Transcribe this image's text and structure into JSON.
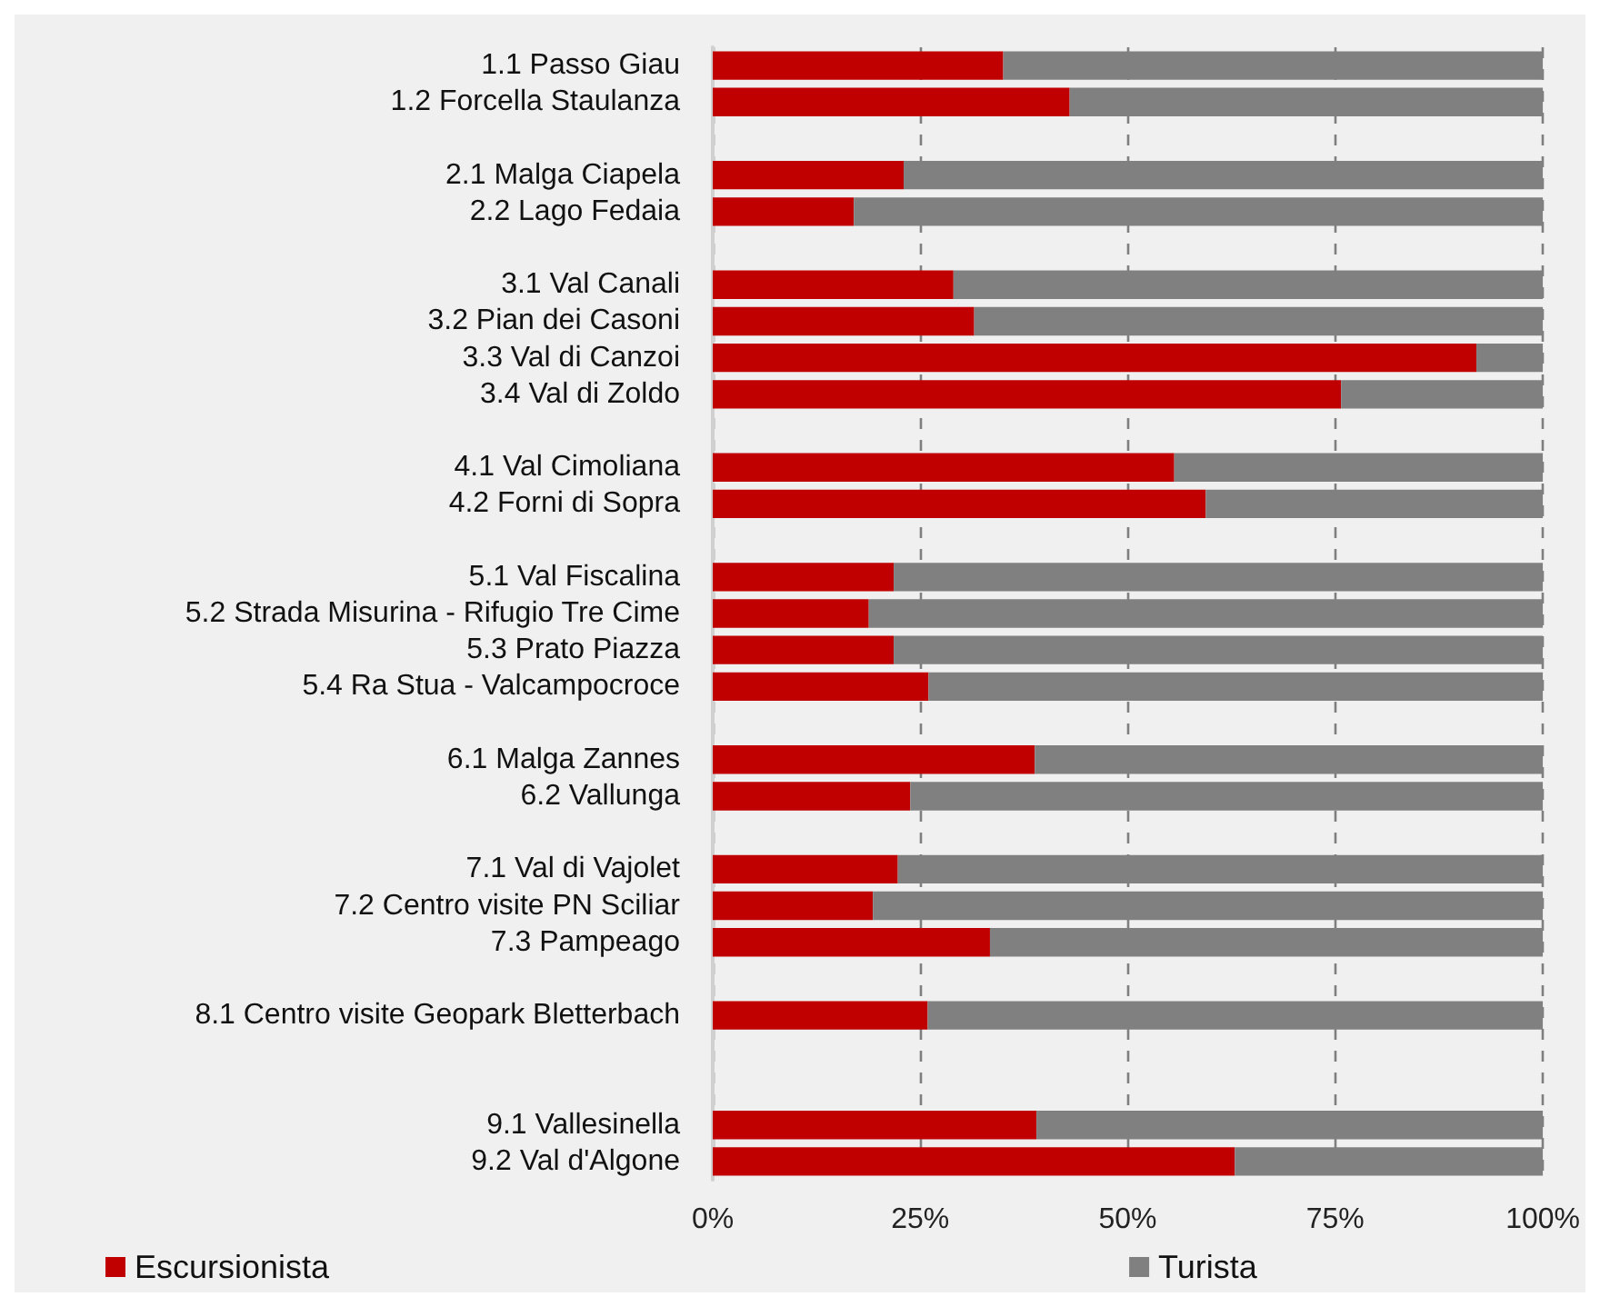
{
  "chart_data": {
    "type": "bar",
    "orientation": "horizontal",
    "stacked": true,
    "categories": [
      "1.1 Passo Giau",
      "1.2 Forcella Staulanza",
      null,
      "2.1 Malga Ciapela",
      "2.2 Lago Fedaia",
      null,
      "3.1 Val Canali",
      "3.2 Pian dei Casoni",
      "3.3 Val di Canzoi",
      "3.4 Val di Zoldo",
      null,
      "4.1 Val Cimoliana",
      "4.2 Forni di Sopra",
      null,
      "5.1 Val Fiscalina",
      "5.2 Strada Misurina - Rifugio Tre Cime",
      "5.3 Prato Piazza",
      "5.4 Ra Stua - Valcampocroce",
      null,
      "6.1 Malga Zannes",
      "6.2 Vallunga",
      null,
      "7.1 Val di Vajolet",
      "7.2 Centro visite PN Sciliar",
      "7.3 Pampeago",
      null,
      "8.1 Centro visite Geopark Bletterbach",
      null,
      null,
      "9.1 Vallesinella",
      "9.2 Val d'Algone"
    ],
    "series": [
      {
        "name": "Escursionista",
        "color": "#c00000",
        "values": [
          35,
          43,
          null,
          23,
          17,
          null,
          29,
          31.5,
          92,
          75.7,
          null,
          55.6,
          59.4,
          null,
          21.8,
          18.8,
          21.8,
          26,
          null,
          38.8,
          23.8,
          null,
          22.3,
          19.3,
          33.4,
          null,
          25.9,
          null,
          null,
          39,
          62.9
        ]
      },
      {
        "name": "Turista",
        "color": "#808080",
        "values": [
          65,
          57,
          null,
          77,
          83,
          null,
          71,
          68.5,
          8,
          24.3,
          null,
          44.4,
          40.6,
          null,
          78.2,
          81.2,
          78.2,
          74,
          null,
          61.2,
          76.2,
          null,
          77.7,
          80.7,
          66.6,
          null,
          74.1,
          null,
          null,
          61,
          37.1
        ]
      }
    ],
    "xlim": [
      0,
      100
    ],
    "xticks": [
      {
        "value": 0,
        "label": "0%"
      },
      {
        "value": 25,
        "label": "25%"
      },
      {
        "value": 50,
        "label": "50%"
      },
      {
        "value": 75,
        "label": "75%"
      },
      {
        "value": 100,
        "label": "100%"
      }
    ],
    "grid": "x",
    "legend": "bottom"
  }
}
